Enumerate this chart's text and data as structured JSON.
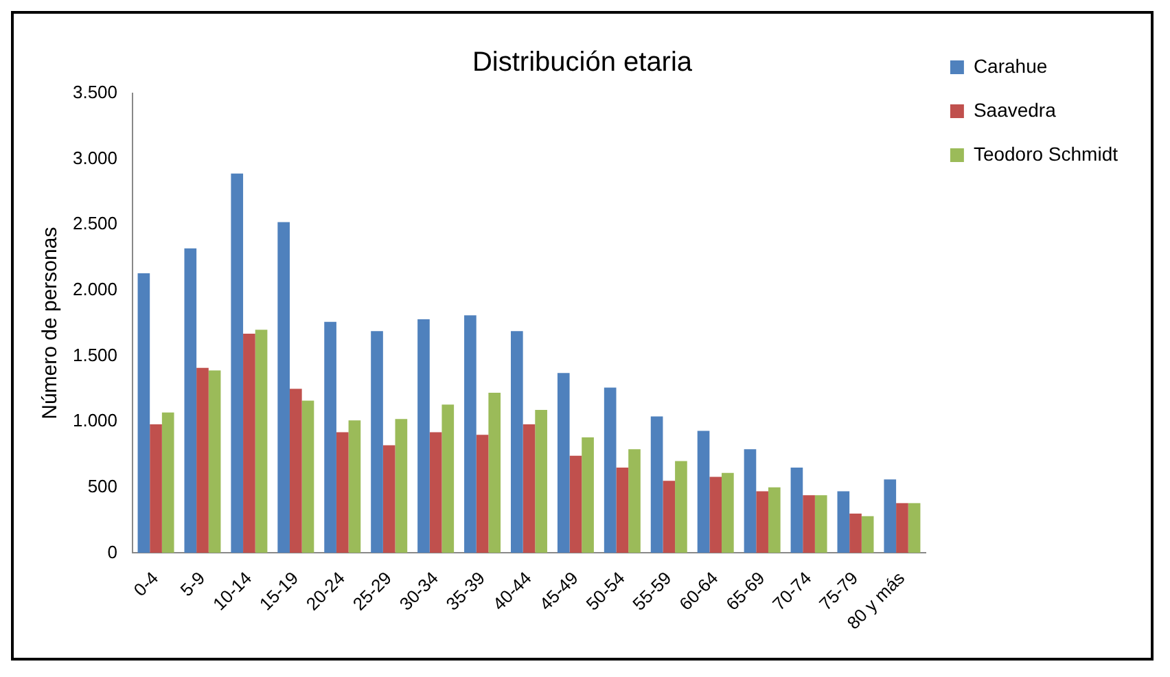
{
  "chart_data": {
    "type": "bar",
    "title": "Distribución etaria",
    "ylabel": "Número de personas",
    "categories": [
      "0-4",
      "5-9",
      "10-14",
      "15-19",
      "20-24",
      "25-29",
      "30-34",
      "35-39",
      "40-44",
      "45-49",
      "50-54",
      "55-59",
      "60-64",
      "65-69",
      "70-74",
      "75-79",
      "80 y más"
    ],
    "series": [
      {
        "name": "Carahue",
        "color": "#4f81bd",
        "values": [
          2130,
          2320,
          2890,
          2520,
          1760,
          1690,
          1780,
          1810,
          1690,
          1370,
          1260,
          1040,
          930,
          790,
          650,
          470,
          560
        ]
      },
      {
        "name": "Saavedra",
        "color": "#c0504d",
        "values": [
          980,
          1410,
          1670,
          1250,
          920,
          820,
          920,
          900,
          980,
          740,
          650,
          550,
          580,
          470,
          440,
          300,
          380
        ]
      },
      {
        "name": "Teodoro Schmidt",
        "color": "#9bbb59",
        "values": [
          1070,
          1390,
          1700,
          1160,
          1010,
          1020,
          1130,
          1220,
          1090,
          880,
          790,
          700,
          610,
          500,
          440,
          280,
          380
        ]
      }
    ],
    "ylim": [
      0,
      3500
    ],
    "yticks": [
      0,
      500,
      {
        "value": 1000,
        "label": "1.000"
      },
      {
        "value": 1500,
        "label": "1.500"
      },
      {
        "value": 2000,
        "label": "2.000"
      },
      {
        "value": 2500,
        "label": "2.500"
      },
      {
        "value": 3000,
        "label": "3.000"
      },
      {
        "value": 3500,
        "label": "3.500"
      }
    ],
    "grid": false,
    "legend": "top right"
  }
}
